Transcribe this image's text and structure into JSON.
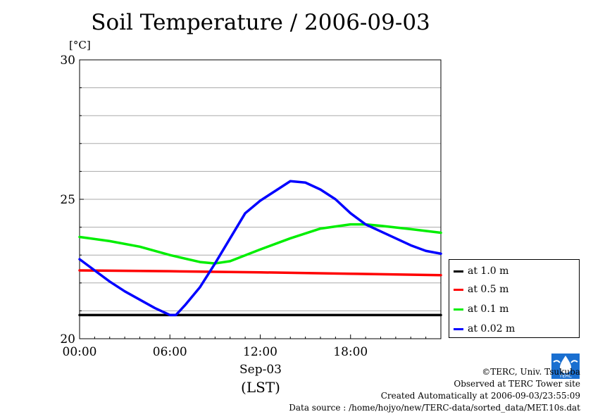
{
  "chart_data": {
    "type": "line",
    "title": "Soil Temperature / 2006-09-03",
    "ylabel": "[°C]",
    "ylim": [
      20,
      30
    ],
    "yticks": [
      "20",
      "25",
      "30"
    ],
    "xlim": [
      0,
      24
    ],
    "xticks": [
      "00:00",
      "06:00",
      "12:00",
      "18:00"
    ],
    "xlabel_date": "Sep-03",
    "xlabel_tz": "(LST)",
    "grid": true,
    "legend_position": "right",
    "series": [
      {
        "name": "at 1.0 m",
        "color": "#000000",
        "x": [
          0,
          24
        ],
        "y": [
          20.85,
          20.85
        ]
      },
      {
        "name": "at 0.5 m",
        "color": "#ff0000",
        "x": [
          0,
          6,
          12,
          18,
          24
        ],
        "y": [
          22.45,
          22.42,
          22.38,
          22.33,
          22.28
        ]
      },
      {
        "name": "at 0.1 m",
        "color": "#00ee00",
        "x": [
          0,
          2,
          4,
          6,
          8,
          9,
          10,
          12,
          14,
          16,
          18,
          19,
          20,
          22,
          24
        ],
        "y": [
          23.65,
          23.5,
          23.3,
          23.0,
          22.75,
          22.7,
          22.78,
          23.2,
          23.6,
          23.95,
          24.1,
          24.1,
          24.05,
          23.93,
          23.8
        ]
      },
      {
        "name": "at 0.02 m",
        "color": "#0000ff",
        "x": [
          0,
          1,
          2,
          3,
          4,
          5,
          6,
          6.4,
          7,
          8,
          9,
          10,
          11,
          12,
          13,
          14,
          15,
          16,
          17,
          18,
          19,
          20,
          21,
          22,
          23,
          24
        ],
        "y": [
          22.85,
          22.45,
          22.05,
          21.7,
          21.4,
          21.1,
          20.85,
          20.85,
          21.2,
          21.85,
          22.7,
          23.6,
          24.5,
          24.95,
          25.3,
          25.65,
          25.6,
          25.35,
          25.0,
          24.5,
          24.1,
          23.85,
          23.6,
          23.35,
          23.15,
          23.05
        ]
      }
    ]
  },
  "footer": {
    "copyright": "©TERC, Univ. Tsukuba",
    "observed": "Observed at TERC Tower site",
    "created": "Created Automatically at 2006-09-03/23:55:09",
    "source": "Data source : /home/hojyo/new/TERC-data/sorted_data/MET.10s.dat"
  },
  "logo_text": "TERC"
}
